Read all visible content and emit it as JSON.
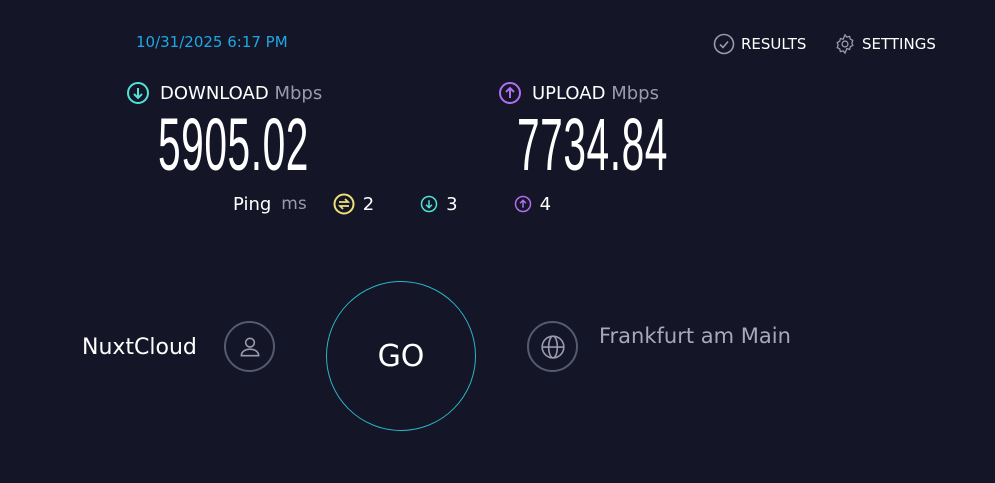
{
  "timestamp": "10/31/2025 6:17 PM",
  "nav": {
    "results": "RESULTS",
    "settings": "SETTINGS"
  },
  "download": {
    "label": "DOWNLOAD",
    "unit": "Mbps",
    "value": "5905.02",
    "color": "#4de3d8"
  },
  "upload": {
    "label": "UPLOAD",
    "unit": "Mbps",
    "value": "7734.84",
    "color": "#b06ef0"
  },
  "ping": {
    "label": "Ping",
    "unit": "ms",
    "idle": "2",
    "download": "3",
    "upload": "4",
    "idle_color": "#f0e07a"
  },
  "provider": {
    "name": "NuxtCloud",
    "icon": "user-icon"
  },
  "server": {
    "location": "Frankfurt am Main",
    "icon": "globe-icon"
  },
  "go_label": "GO"
}
